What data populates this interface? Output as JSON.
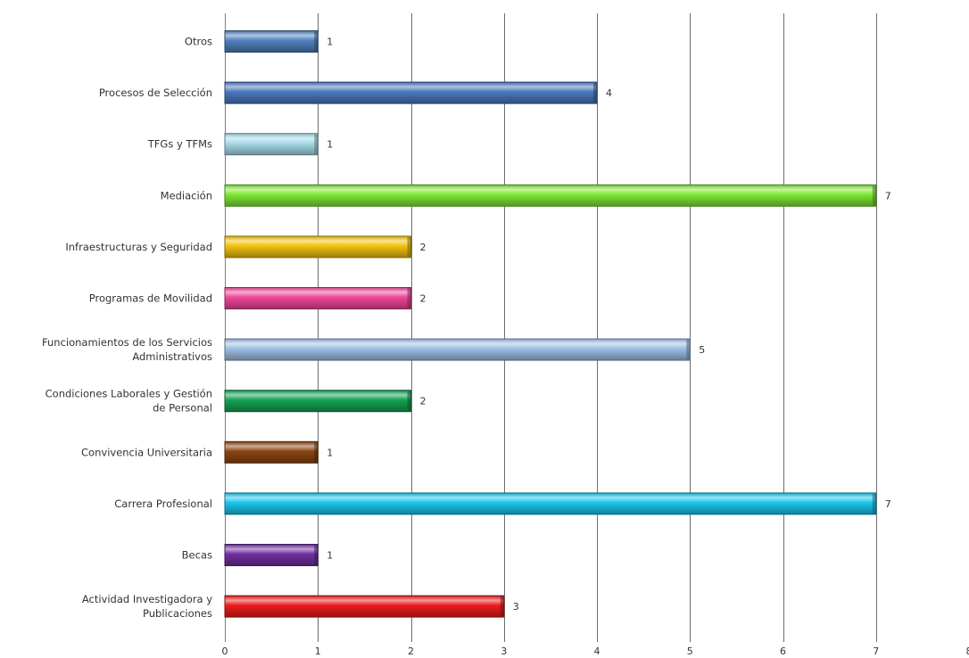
{
  "chart_data": {
    "type": "bar",
    "orientation": "horizontal",
    "categories": [
      "Otros",
      "Procesos de Selección",
      "TFGs y TFMs",
      "Mediación",
      "Infraestructuras y Seguridad",
      "Programas de Movilidad",
      "Funcionamientos de los Servicios Administrativos",
      "Condiciones Laborales y Gestión de Personal",
      "Convivencia Universitaria",
      "Carrera Profesional",
      "Becas",
      "Actividad Investigadora y Publicaciones"
    ],
    "category_lines": [
      [
        "Otros"
      ],
      [
        "Procesos de Selección"
      ],
      [
        "TFGs y TFMs"
      ],
      [
        "Mediación"
      ],
      [
        "Infraestructuras y Seguridad"
      ],
      [
        "Programas de Movilidad"
      ],
      [
        "Funcionamientos de los Servicios",
        "Administrativos"
      ],
      [
        "Condiciones Laborales y Gestión",
        "de Personal"
      ],
      [
        "Convivencia Universitaria"
      ],
      [
        "Carrera Profesional"
      ],
      [
        "Becas"
      ],
      [
        "Actividad Investigadora y",
        "Publicaciones"
      ]
    ],
    "values": [
      1,
      4,
      1,
      7,
      2,
      2,
      5,
      2,
      1,
      7,
      1,
      3
    ],
    "value_labels": [
      "1",
      "4",
      "1",
      "7",
      "2",
      "2",
      "5",
      "2",
      "1",
      "7",
      "1",
      "3"
    ],
    "colors": [
      "#4f81bd",
      "#4a78bd",
      "#a8dcea",
      "#7ee832",
      "#f2c20f",
      "#f0469a",
      "#9fc0e6",
      "#14a353",
      "#8b4513",
      "#19c5ec",
      "#7030a0",
      "#ee1c1c"
    ],
    "xlim": [
      0,
      8
    ],
    "xticks": [
      "0",
      "1",
      "2",
      "3",
      "4",
      "5",
      "6",
      "7",
      "8"
    ],
    "grid": true,
    "legend": "none",
    "title": "",
    "xlabel": "",
    "ylabel": ""
  }
}
